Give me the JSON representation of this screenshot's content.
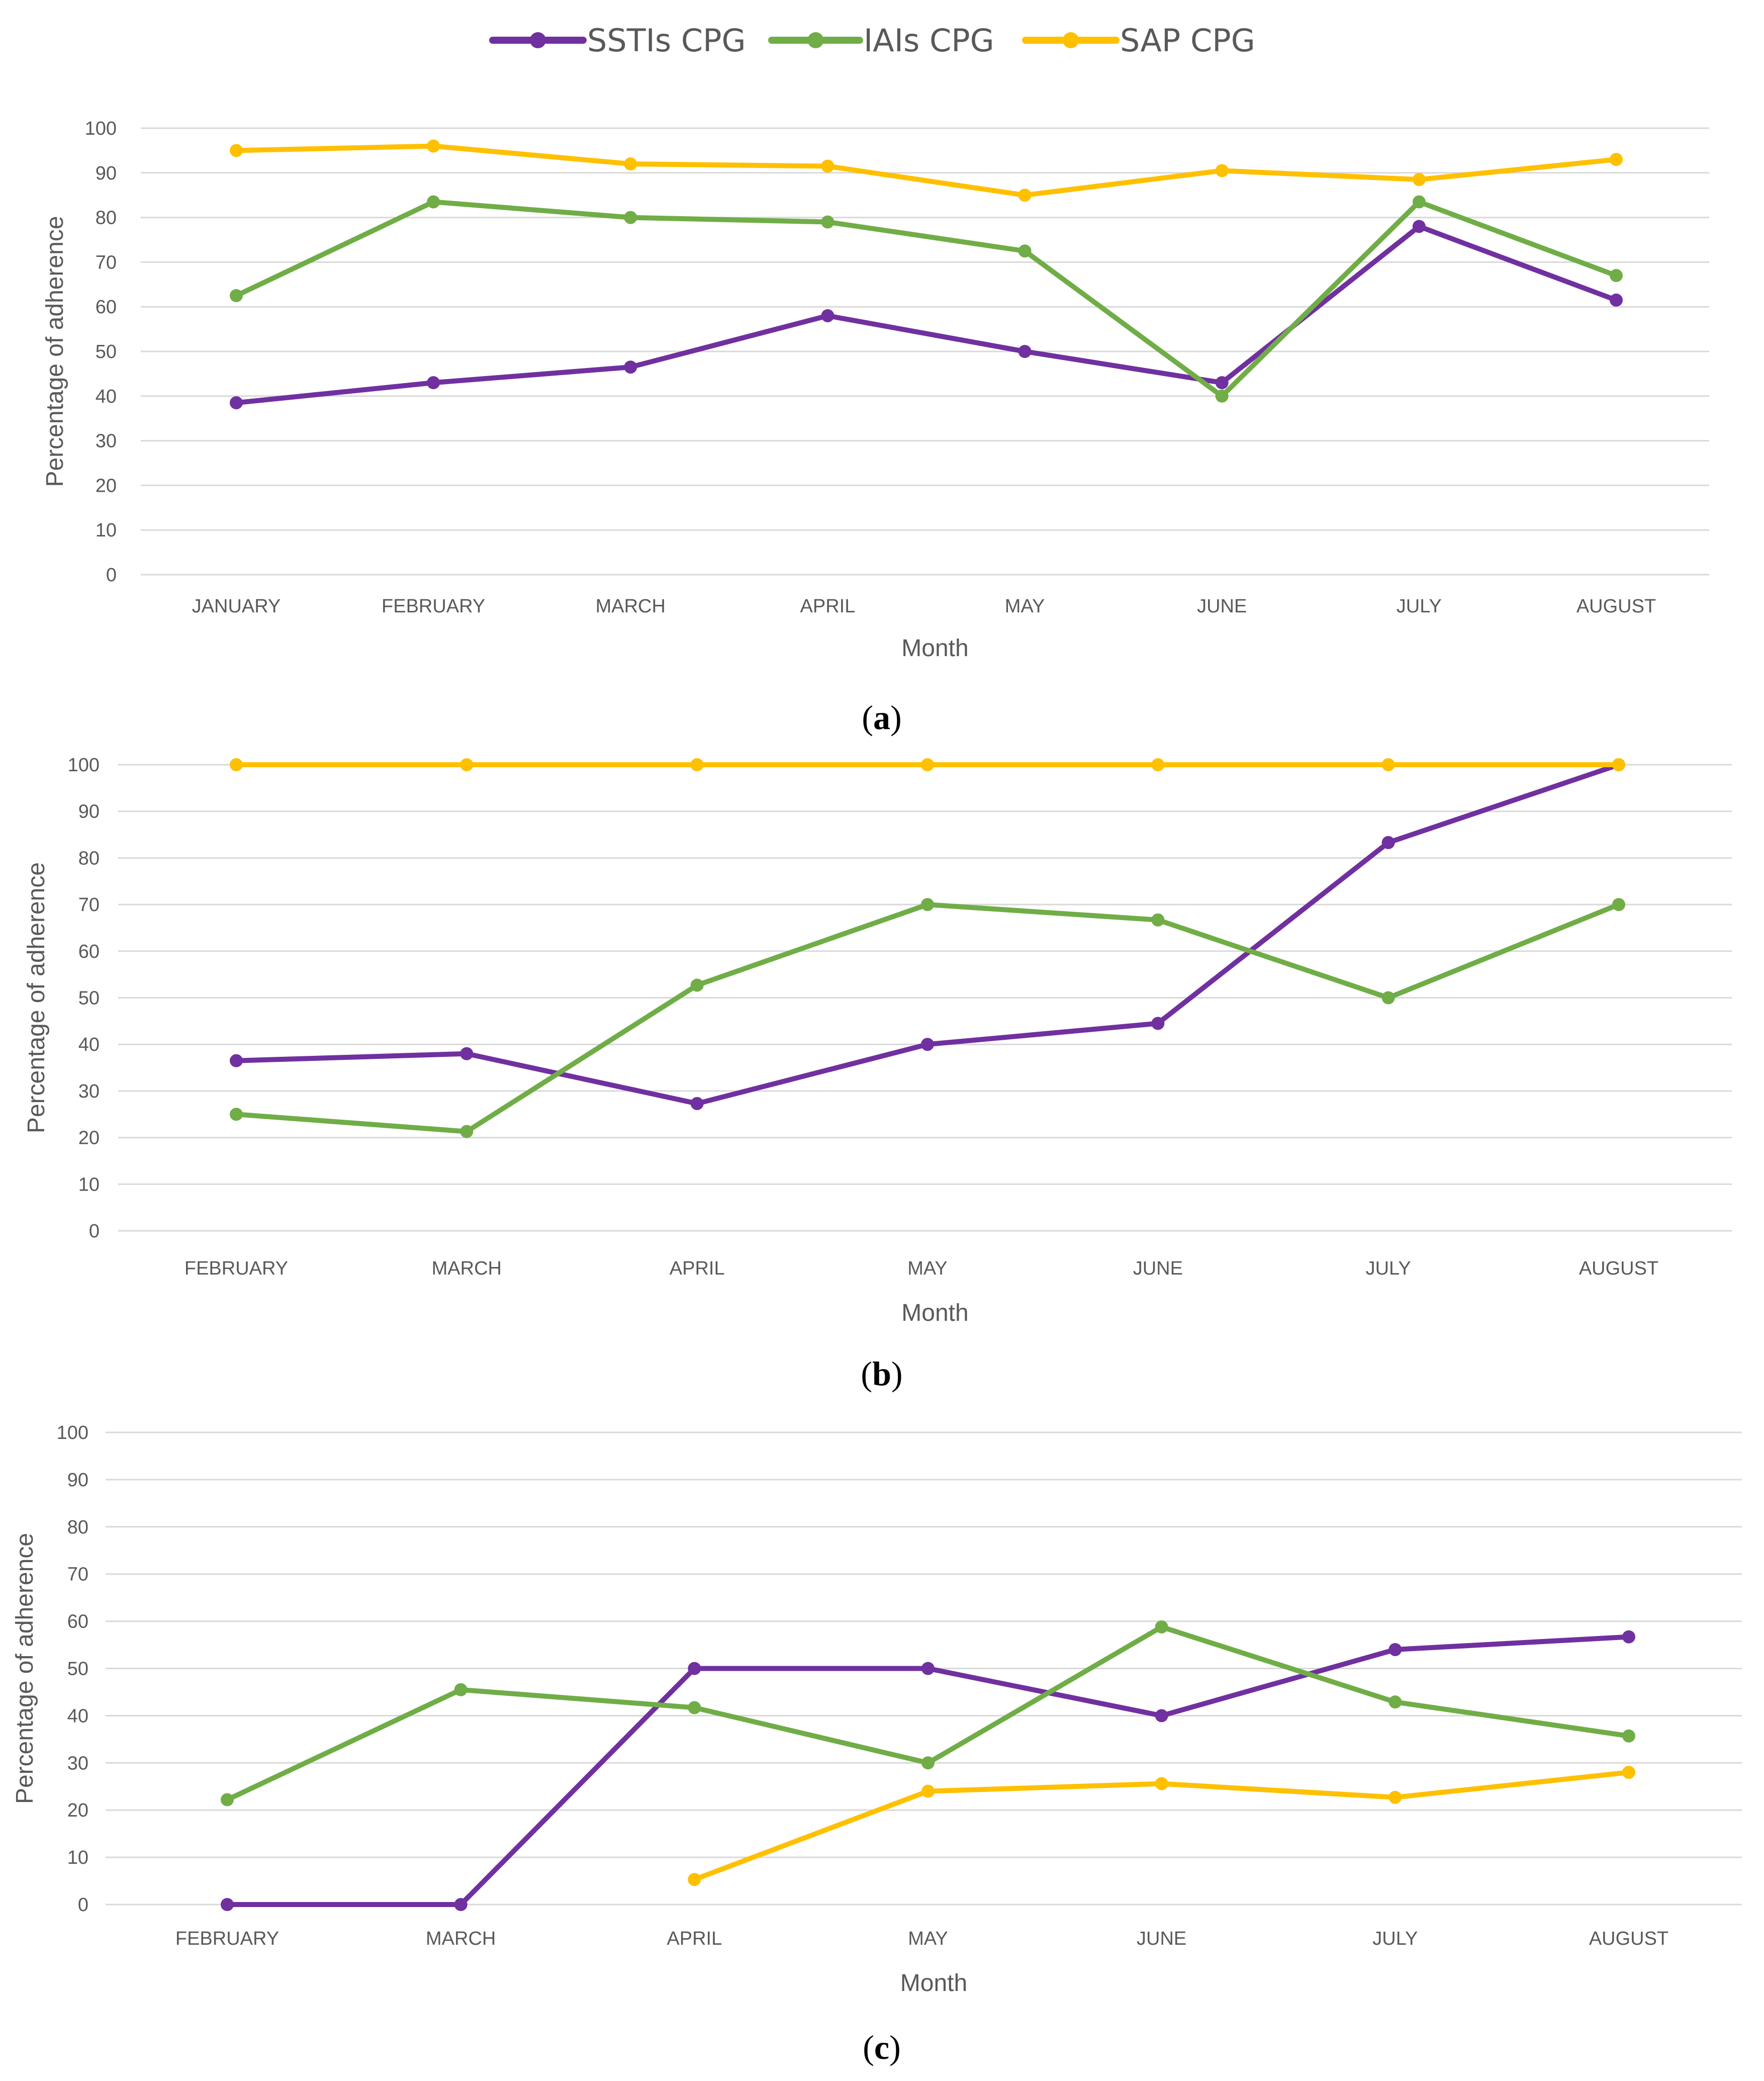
{
  "legend": [
    {
      "label": "SSTIs CPG",
      "color": "#7030a0"
    },
    {
      "label": "IAIs CPG",
      "color": "#70ad47"
    },
    {
      "label": "SAP CPG",
      "color": "#ffc000"
    }
  ],
  "chart_data": [
    {
      "type": "line",
      "caption_letter": "a",
      "categories": [
        "JANUARY",
        "FEBRUARY",
        "MARCH",
        "APRIL",
        "MAY",
        "JUNE",
        "JULY",
        "AUGUST"
      ],
      "series": [
        {
          "name": "SSTIs CPG",
          "color": "#7030a0",
          "values": [
            38.5,
            43,
            46.5,
            58,
            50,
            43,
            78,
            61.5
          ]
        },
        {
          "name": "IAIs CPG",
          "color": "#70ad47",
          "values": [
            62.5,
            83.5,
            80,
            79,
            72.5,
            40,
            83.5,
            67
          ]
        },
        {
          "name": "SAP CPG",
          "color": "#ffc000",
          "values": [
            95,
            96,
            92,
            91.5,
            85,
            90.5,
            88.5,
            93
          ]
        }
      ],
      "xlabel": "Month",
      "ylabel": "Percentage of adherence",
      "ylim": [
        0,
        100
      ],
      "yticks": [
        "0",
        "10",
        "20",
        "30",
        "40",
        "50",
        "60",
        "70",
        "80",
        "90",
        "100"
      ]
    },
    {
      "type": "line",
      "caption_letter": "b",
      "categories": [
        "FEBRUARY",
        "MARCH",
        "APRIL",
        "MAY",
        "JUNE",
        "JULY",
        "AUGUST"
      ],
      "series": [
        {
          "name": "SSTIs CPG",
          "color": "#7030a0",
          "values": [
            36.5,
            38,
            27.3,
            40,
            44.5,
            83.3,
            100
          ]
        },
        {
          "name": "IAIs CPG",
          "color": "#70ad47",
          "values": [
            25,
            21.3,
            52.7,
            70,
            66.7,
            50,
            70
          ]
        },
        {
          "name": "SAP CPG",
          "color": "#ffc000",
          "values": [
            100,
            100,
            100,
            100,
            100,
            100,
            100
          ]
        }
      ],
      "xlabel": "Month",
      "ylabel": "Percentage of adherence",
      "ylim": [
        0,
        100
      ],
      "yticks": [
        "0",
        "10",
        "20",
        "30",
        "40",
        "50",
        "60",
        "70",
        "80",
        "90",
        "100"
      ]
    },
    {
      "type": "line",
      "caption_letter": "c",
      "categories": [
        "FEBRUARY",
        "MARCH",
        "APRIL",
        "MAY",
        "JUNE",
        "JULY",
        "AUGUST"
      ],
      "series": [
        {
          "name": "SSTIs CPG",
          "color": "#7030a0",
          "values": [
            0,
            0,
            50,
            50,
            40,
            54,
            56.7
          ]
        },
        {
          "name": "IAIs CPG",
          "color": "#70ad47",
          "values": [
            22.2,
            45.5,
            41.7,
            30,
            58.8,
            42.9,
            35.7
          ]
        },
        {
          "name": "SAP CPG",
          "color": "#ffc000",
          "values": [
            null,
            null,
            5.3,
            24,
            25.6,
            22.7,
            28
          ]
        }
      ],
      "xlabel": "Month",
      "ylabel": "Percentage of adherence",
      "ylim": [
        0,
        100
      ],
      "yticks": [
        "0",
        "10",
        "20",
        "30",
        "40",
        "50",
        "60",
        "70",
        "80",
        "90",
        "100"
      ]
    }
  ]
}
